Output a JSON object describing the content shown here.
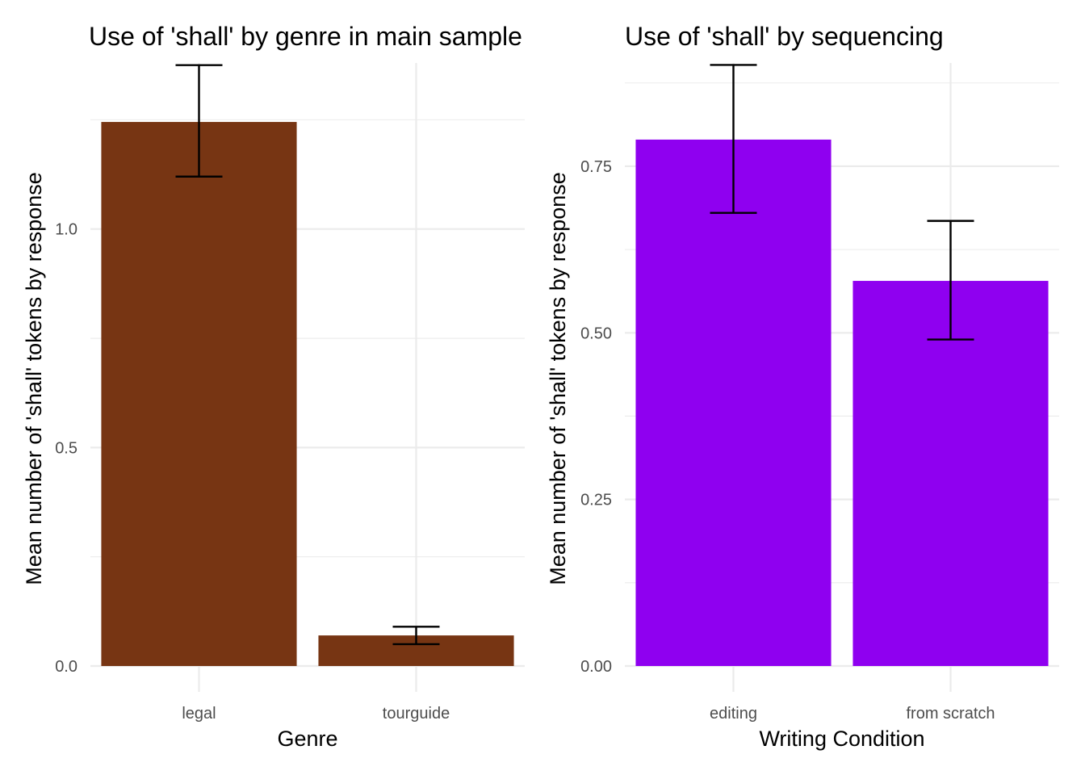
{
  "chart_data": [
    {
      "type": "bar",
      "title": "Use of 'shall' by genre in main sample",
      "xlabel": "Genre",
      "ylabel": "Mean number of 'shall' tokens by response",
      "categories": [
        "legal",
        "tourguide"
      ],
      "values": [
        1.245,
        0.07
      ],
      "error_low": [
        1.12,
        0.05
      ],
      "error_high": [
        1.375,
        0.09
      ],
      "ylim": [
        0,
        1.38
      ],
      "yticks": [
        0.0,
        0.5,
        1.0
      ],
      "ytick_labels": [
        "0.0",
        "0.5",
        "1.0"
      ],
      "yminor": [
        0.25,
        0.75,
        1.25
      ],
      "bar_color": "#773513",
      "grid": true
    },
    {
      "type": "bar",
      "title": "Use of 'shall' by sequencing",
      "xlabel": "Writing Condition",
      "ylabel": "Mean number of 'shall' tokens by response",
      "categories": [
        "editing",
        "from scratch"
      ],
      "values": [
        0.79,
        0.578
      ],
      "error_low": [
        0.68,
        0.49
      ],
      "error_high": [
        0.902,
        0.668
      ],
      "ylim": [
        0,
        0.905
      ],
      "yticks": [
        0.0,
        0.25,
        0.5,
        0.75
      ],
      "ytick_labels": [
        "0.00",
        "0.25",
        "0.50",
        "0.75"
      ],
      "yminor": [
        0.125,
        0.375,
        0.625,
        0.875
      ],
      "bar_color": "#8f00f0",
      "grid": true
    }
  ]
}
